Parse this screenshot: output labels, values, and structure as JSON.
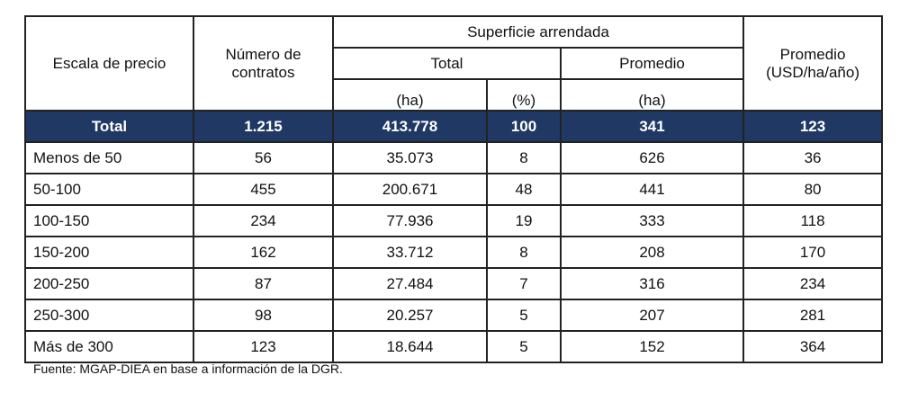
{
  "header": {
    "escala": "Escala de precio",
    "numero": "Número de contratos",
    "superficie": "Superficie arrendada",
    "total": "Total",
    "promedio": "Promedio",
    "ha": "(ha)",
    "pct": "(%)",
    "ha2": "(ha)",
    "precio": "Promedio (USD/ha/año)"
  },
  "total_row": {
    "label": "Total",
    "contratos": "1.215",
    "ha": "413.778",
    "pct": "100",
    "prom_ha": "341",
    "usd": "123"
  },
  "rows": [
    {
      "label": "Menos de 50",
      "contratos": "56",
      "ha": "35.073",
      "pct": "8",
      "prom_ha": "626",
      "usd": "36"
    },
    {
      "label": "50-100",
      "contratos": "455",
      "ha": "200.671",
      "pct": "48",
      "prom_ha": "441",
      "usd": "80"
    },
    {
      "label": "100-150",
      "contratos": "234",
      "ha": "77.936",
      "pct": "19",
      "prom_ha": "333",
      "usd": "118"
    },
    {
      "label": "150-200",
      "contratos": "162",
      "ha": "33.712",
      "pct": "8",
      "prom_ha": "208",
      "usd": "170"
    },
    {
      "label": "200-250",
      "contratos": "87",
      "ha": "27.484",
      "pct": "7",
      "prom_ha": "316",
      "usd": "234"
    },
    {
      "label": "250-300",
      "contratos": "98",
      "ha": "20.257",
      "pct": "5",
      "prom_ha": "207",
      "usd": "281"
    },
    {
      "label": "Más de 300",
      "contratos": "123",
      "ha": "18.644",
      "pct": "5",
      "prom_ha": "152",
      "usd": "364"
    }
  ],
  "footnote": "Fuente: MGAP-DIEA en base a información de la DGR.",
  "colors": {
    "header_bg": "#1f3864"
  }
}
